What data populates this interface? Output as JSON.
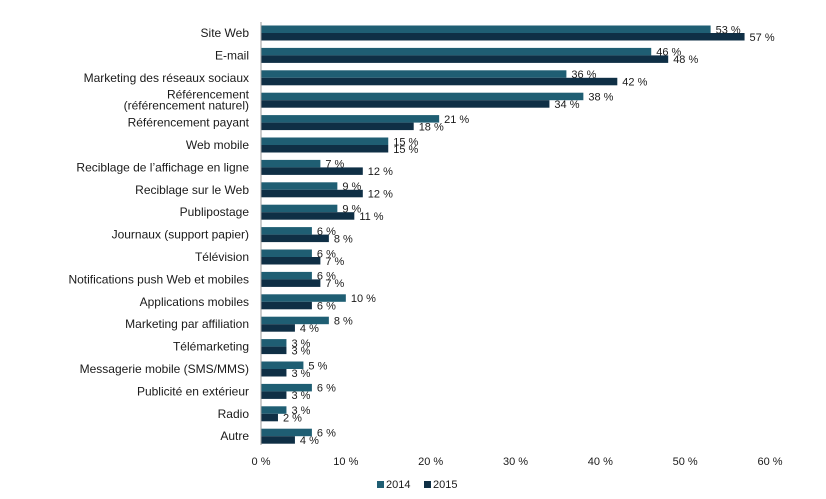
{
  "chart_data": {
    "type": "bar",
    "orientation": "horizontal",
    "categories": [
      [
        "Site Web"
      ],
      [
        "E-mail"
      ],
      [
        "Marketing des réseaux sociaux"
      ],
      [
        "Référencement",
        "(référencement naturel)"
      ],
      [
        "Référencement payant"
      ],
      [
        "Web mobile"
      ],
      [
        "Reciblage de l’affichage en ligne"
      ],
      [
        "Reciblage sur le Web"
      ],
      [
        "Publipostage"
      ],
      [
        "Journaux (support papier)"
      ],
      [
        "Télévision"
      ],
      [
        "Notifications push Web et mobiles"
      ],
      [
        "Applications mobiles"
      ],
      [
        "Marketing par affiliation"
      ],
      [
        "Télémarketing"
      ],
      [
        "Messagerie mobile (SMS/MMS)"
      ],
      [
        "Publicité en extérieur"
      ],
      [
        "Radio"
      ],
      [
        "Autre"
      ]
    ],
    "series": [
      {
        "name": "2014",
        "color": "#1f5e73",
        "values": [
          53,
          46,
          36,
          38,
          21,
          15,
          7,
          9,
          9,
          6,
          6,
          6,
          10,
          8,
          3,
          5,
          6,
          3,
          6
        ]
      },
      {
        "name": "2015",
        "color": "#0f2f45",
        "values": [
          57,
          48,
          42,
          34,
          18,
          15,
          12,
          12,
          11,
          8,
          7,
          7,
          6,
          4,
          3,
          3,
          3,
          2,
          4
        ]
      }
    ],
    "value_suffix": " %",
    "xlim": [
      0,
      60
    ],
    "xticks": [
      {
        "value": 0,
        "label": "0 %"
      },
      {
        "value": 10,
        "label": "10 %"
      },
      {
        "value": 20,
        "label": "20 %"
      },
      {
        "value": 30,
        "label": "30 %"
      },
      {
        "value": 40,
        "label": "40 %"
      },
      {
        "value": 50,
        "label": "50 %"
      },
      {
        "value": 60,
        "label": "60 %"
      }
    ],
    "grid": false,
    "legend_position": "bottom-center",
    "title": "",
    "xlabel": "",
    "ylabel": ""
  }
}
